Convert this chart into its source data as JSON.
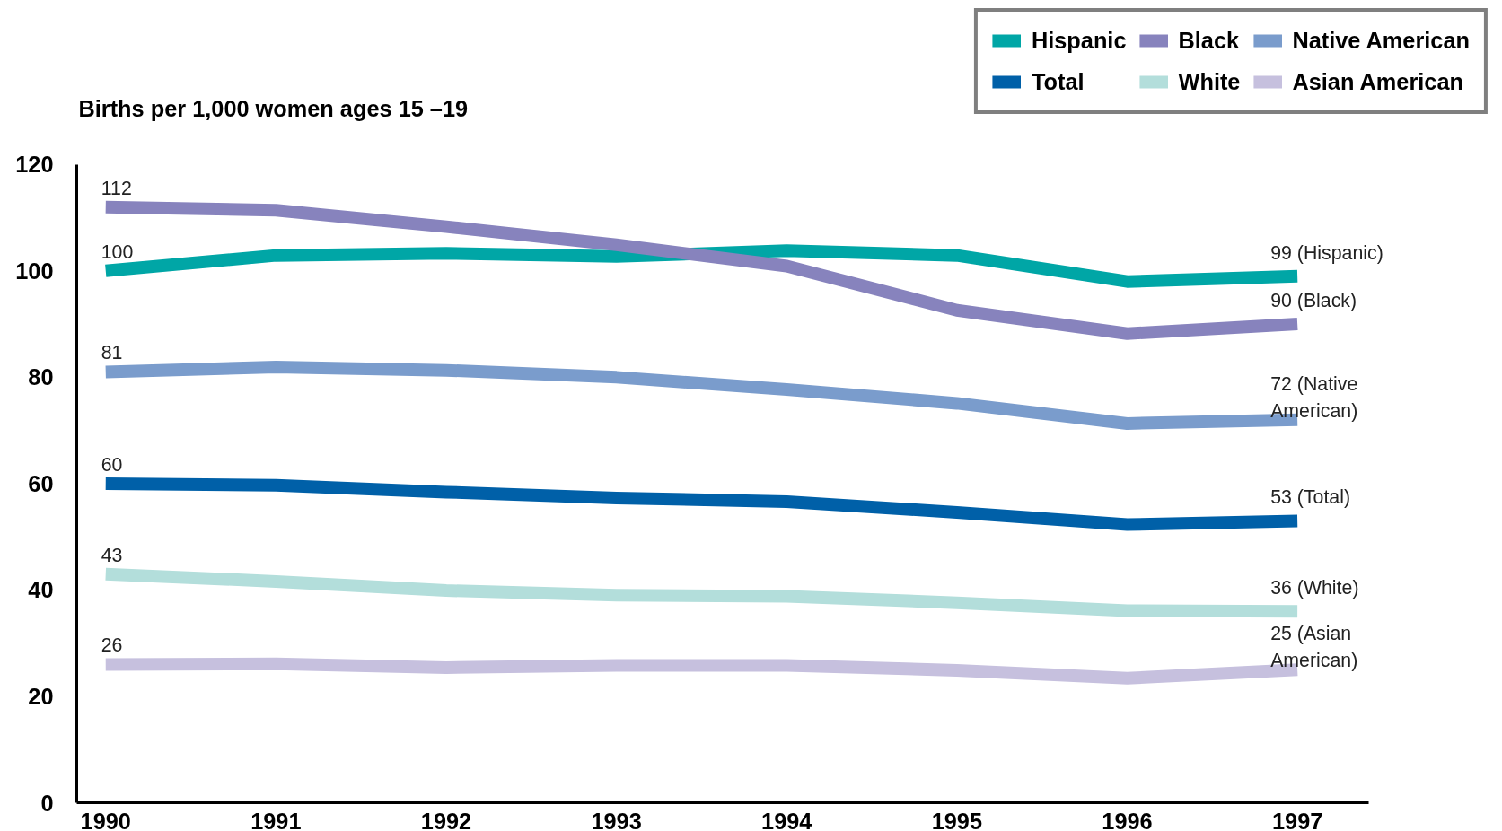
{
  "chart_data": {
    "type": "line",
    "ylabel": "Births per 1,000 women ages 15 –19",
    "x": [
      1990,
      1991,
      1992,
      1993,
      1994,
      1995,
      1996,
      1997
    ],
    "xlim": [
      1989.83,
      1997.42
    ],
    "xticks": [
      1990,
      1991,
      1992,
      1993,
      1994,
      1995,
      1996,
      1997
    ],
    "ylim": [
      0,
      120
    ],
    "yticks": [
      0,
      20,
      40,
      60,
      80,
      100,
      120
    ],
    "grid": false,
    "legend": "top right",
    "marker": "none",
    "line_style": "solid",
    "series": [
      {
        "name": "Hispanic",
        "color": "#00a6a6",
        "values": [
          100,
          102.9,
          103.3,
          102.7,
          103.8,
          102.9,
          98,
          99
        ],
        "value_labels": [
          "100",
          null,
          null,
          null,
          null,
          null,
          null,
          "99 (Hispanic)"
        ]
      },
      {
        "name": "Black",
        "color": "#8783bd",
        "values": [
          112,
          111.4,
          108.3,
          104.9,
          100.9,
          92.6,
          88.2,
          90
        ],
        "value_labels": [
          "112",
          null,
          null,
          null,
          null,
          null,
          null,
          "90 (Black)"
        ]
      },
      {
        "name": "Native American",
        "color": "#7a9ccc",
        "values": [
          81,
          81.9,
          81.3,
          80,
          77.7,
          75.1,
          71.3,
          72
        ],
        "value_labels": [
          "81",
          null,
          null,
          null,
          null,
          null,
          null,
          "72 (Native\n American)"
        ]
      },
      {
        "name": "Total",
        "color": "#0060a8",
        "values": [
          60,
          59.7,
          58.4,
          57.3,
          56.6,
          54.6,
          52.3,
          53
        ],
        "value_labels": [
          "60",
          null,
          null,
          null,
          null,
          null,
          null,
          "53 (Total)"
        ]
      },
      {
        "name": "White",
        "color": "#b3dedb",
        "values": [
          43,
          41.6,
          39.9,
          39,
          38.8,
          37.6,
          36.1,
          36
        ],
        "value_labels": [
          "43",
          null,
          null,
          null,
          null,
          null,
          null,
          "36 (White)"
        ]
      },
      {
        "name": "Asian American",
        "color": "#c6c0de",
        "values": [
          26,
          26.1,
          25.4,
          25.8,
          25.8,
          24.9,
          23.4,
          25
        ],
        "value_labels": [
          "26",
          null,
          null,
          null,
          null,
          null,
          null,
          "25 (Asian\n American)"
        ]
      }
    ]
  }
}
